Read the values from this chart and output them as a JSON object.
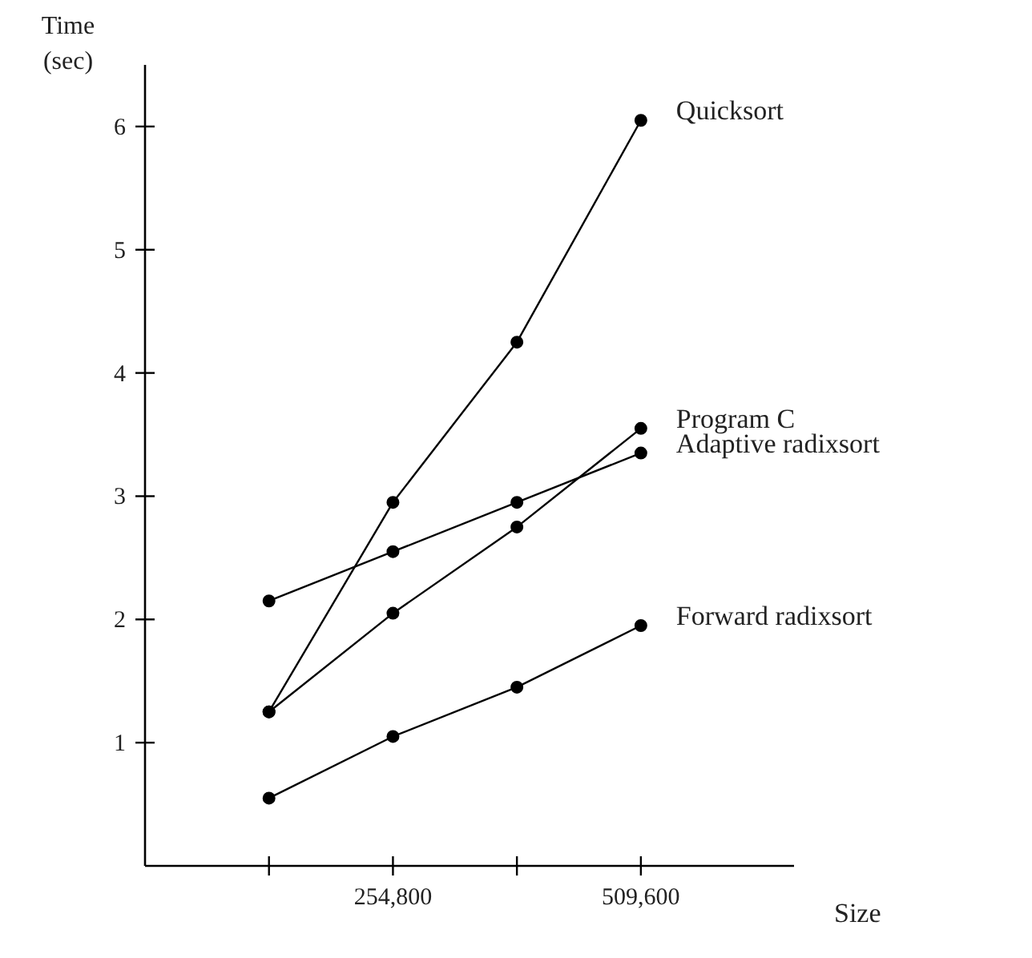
{
  "chart_data": {
    "type": "line",
    "xlabel": "Size",
    "ylabel": "Time\n(sec)",
    "x": [
      127400,
      254800,
      382200,
      509600
    ],
    "xlim": [
      0,
      667000
    ],
    "ylim": [
      0,
      6.5
    ],
    "xticks": [
      {
        "value": 127400,
        "label": null
      },
      {
        "value": 254800,
        "label": "254,800"
      },
      {
        "value": 382200,
        "label": null
      },
      {
        "value": 509600,
        "label": "509,600"
      }
    ],
    "yticks": [
      1,
      2,
      3,
      4,
      5,
      6
    ],
    "marker": "circle",
    "line_style": "solid",
    "grid": false,
    "series": [
      {
        "name": "Quicksort",
        "color": "#000000",
        "values": [
          1.25,
          2.95,
          4.25,
          6.05
        ]
      },
      {
        "name": "Program C",
        "color": "#000000",
        "values": [
          1.25,
          2.05,
          2.75,
          3.55
        ]
      },
      {
        "name": "Adaptive radixsort",
        "color": "#000000",
        "values": [
          2.15,
          2.55,
          2.95,
          3.35
        ]
      },
      {
        "name": "Forward radixsort",
        "color": "#000000",
        "values": [
          0.55,
          1.05,
          1.45,
          1.95
        ]
      }
    ]
  }
}
